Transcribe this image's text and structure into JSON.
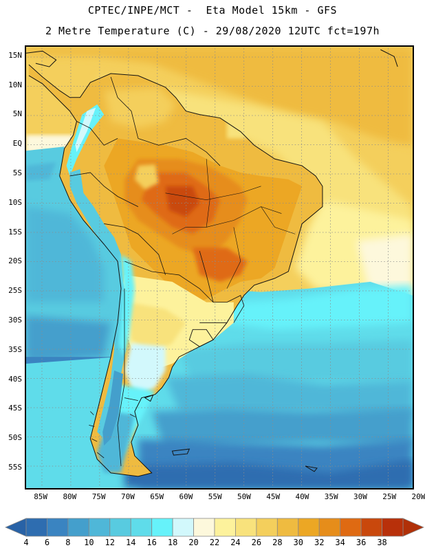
{
  "header": {
    "line1": "CPTEC/INPE/MCT -  Eta Model 15km - GFS",
    "line2": "2 Metre Temperature (C) - 29/08/2020 12UTC fct=197h"
  },
  "map": {
    "lat_labels": [
      "15N",
      "10N",
      "5N",
      "EQ",
      "5S",
      "10S",
      "15S",
      "20S",
      "25S",
      "30S",
      "35S",
      "40S",
      "45S",
      "50S",
      "55S"
    ],
    "lon_labels": [
      "85W",
      "80W",
      "75W",
      "70W",
      "65W",
      "60W",
      "55W",
      "50W",
      "45W",
      "40W",
      "35W",
      "30W",
      "25W",
      "20W"
    ],
    "lat_range": [
      16.5,
      -58.5
    ],
    "lon_range": [
      -87.5,
      -21.0
    ],
    "grid_step_deg": 5
  },
  "legend": {
    "tick_labels": [
      "4",
      "6",
      "8",
      "10",
      "12",
      "14",
      "16",
      "18",
      "20",
      "22",
      "24",
      "26",
      "28",
      "30",
      "32",
      "34",
      "36",
      "38"
    ],
    "colors": [
      "#2e6db0",
      "#3a84c1",
      "#449fcc",
      "#4fb7d8",
      "#58cbe0",
      "#5fdcea",
      "#66f2fa",
      "#d2f8fc",
      "#fdf8dc",
      "#fdf29c",
      "#f8e27c",
      "#f4cf5c",
      "#efbb40",
      "#eca724",
      "#e68d1a",
      "#df6a12",
      "#c9480c",
      "#b8300a"
    ],
    "left_arrow_color": "#2862a6",
    "right_arrow_color": "#b03008"
  }
}
